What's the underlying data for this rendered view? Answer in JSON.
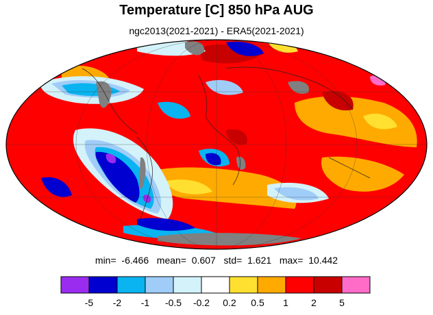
{
  "title": "Temperature [C] 850 hPa AUG",
  "subtitle": "ngc2013(2021-2021) - ERA5(2021-2021)",
  "stats": {
    "min_label": "min=",
    "min": "-6.466",
    "mean_label": "mean=",
    "mean": "0.607",
    "std_label": "std=",
    "std": "1.621",
    "max_label": "max=",
    "max": "10.442"
  },
  "colorbar": {
    "colors": [
      "#9a2cf0",
      "#0000d0",
      "#0ab4f0",
      "#a0cdf8",
      "#d4f2fa",
      "#ffffff",
      "#ffe030",
      "#ffaa00",
      "#ff0000",
      "#c80000",
      "#ff6cc8"
    ],
    "tick_labels": [
      "-5",
      "-2",
      "-1",
      "-0.5",
      "-0.2",
      "0.2",
      "0.5",
      "1",
      "2",
      "5"
    ]
  },
  "map": {
    "projection": "mollweide",
    "land_mask_color": "#808080",
    "background_color": "#ff0000"
  }
}
